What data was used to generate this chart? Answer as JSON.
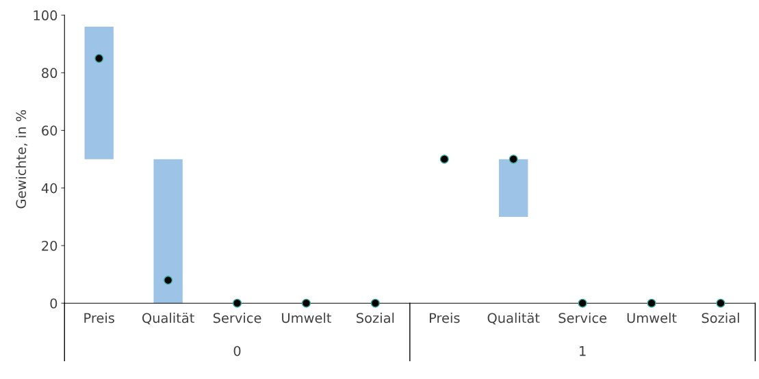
{
  "chart_data": {
    "type": "bar",
    "ylabel": "Gewichte, in %",
    "categories": [
      "Preis",
      "Qualität",
      "Service",
      "Umwelt",
      "Sozial",
      "Preis",
      "Qualität",
      "Service",
      "Umwelt",
      "Sozial"
    ],
    "series": [
      {
        "color": "#9dc3e6",
        "base": [
          50,
          0,
          null,
          null,
          null,
          null,
          30,
          null,
          null,
          null
        ],
        "values": [
          46,
          50,
          null,
          null,
          null,
          null,
          20,
          null,
          null,
          null
        ]
      },
      {
        "type": "scatter",
        "color": "#000000",
        "values": [
          85,
          8,
          0,
          0,
          0,
          50,
          50,
          0,
          0,
          0
        ]
      }
    ],
    "marker": "circle",
    "ylim": [
      0,
      100
    ],
    "yticks": [
      0,
      20,
      40,
      60,
      80,
      100
    ],
    "grid": false,
    "legend": false,
    "annotations": [
      "0",
      "1"
    ]
  }
}
